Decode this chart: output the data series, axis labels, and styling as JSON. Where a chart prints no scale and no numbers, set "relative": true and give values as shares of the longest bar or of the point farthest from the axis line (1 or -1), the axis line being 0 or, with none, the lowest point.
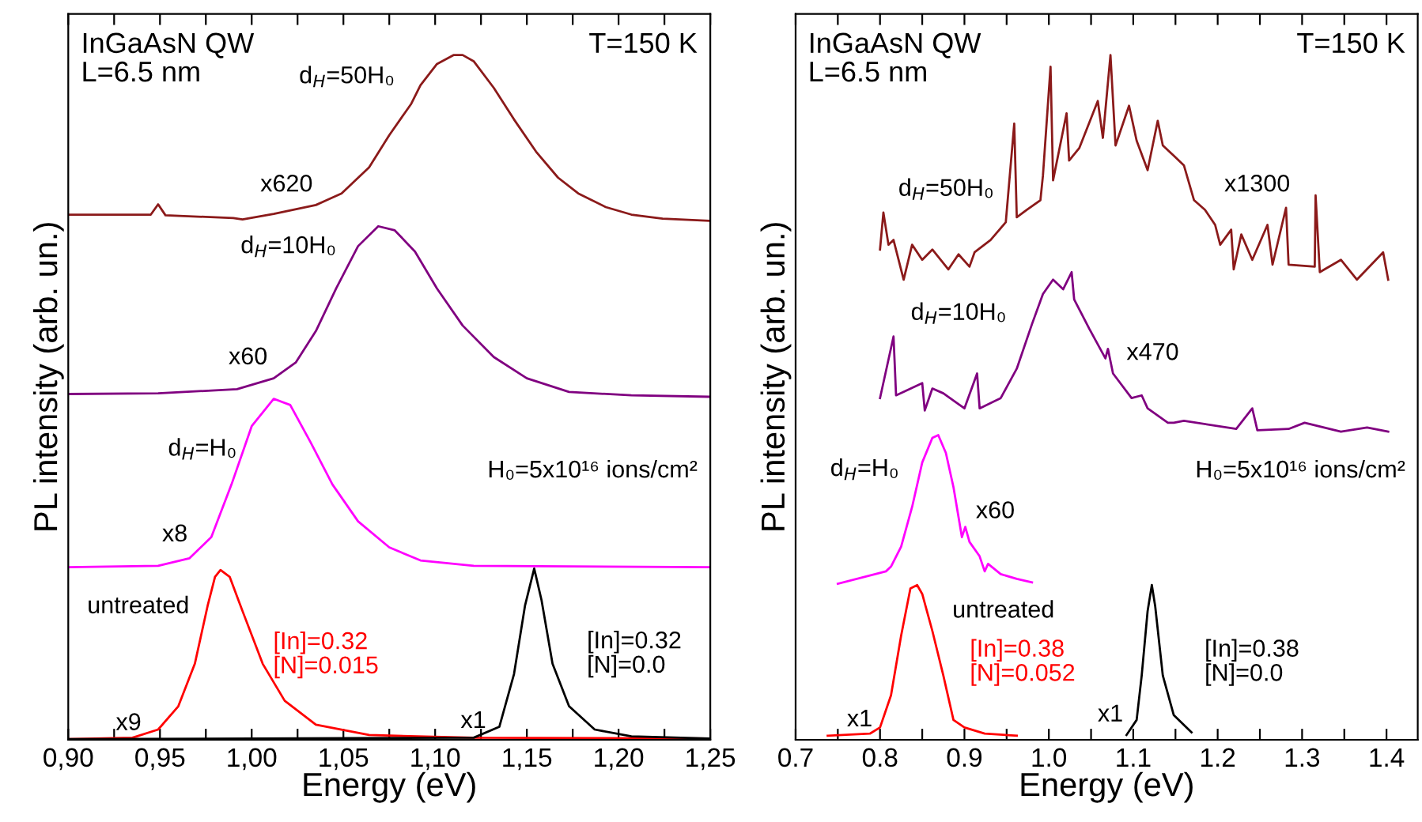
{
  "chart_data": [
    {
      "type": "line",
      "relative": true,
      "tick_labels": "x",
      "xlabel": "Energy (eV)",
      "ylabel": "PL intensity (arb. un.)",
      "xlim": [
        0.9,
        1.25
      ],
      "xticks": [
        {
          "value": 0.9,
          "label": "0,90"
        },
        {
          "value": 0.925,
          "label": null
        },
        {
          "value": 0.95,
          "label": "0,95"
        },
        {
          "value": 0.975,
          "label": null
        },
        {
          "value": 1.0,
          "label": "1,00"
        },
        {
          "value": 1.025,
          "label": null
        },
        {
          "value": 1.05,
          "label": "1,05"
        },
        {
          "value": 1.075,
          "label": null
        },
        {
          "value": 1.1,
          "label": "1,10"
        },
        {
          "value": 1.125,
          "label": null
        },
        {
          "value": 1.15,
          "label": "1,15"
        },
        {
          "value": 1.175,
          "label": null
        },
        {
          "value": 1.2,
          "label": "1,20"
        },
        {
          "value": 1.225,
          "label": null
        },
        {
          "value": 1.25,
          "label": "1,25"
        }
      ],
      "series": [
        {
          "color": "#8b1a1a",
          "x": [
            0.9,
            0.945,
            0.949,
            0.953,
            0.99,
            0.995,
            1.012,
            1.035,
            1.049,
            1.064,
            1.075,
            1.087,
            1.092,
            1.101,
            1.11,
            1.115,
            1.121,
            1.132,
            1.143,
            1.155,
            1.167,
            1.178,
            1.193,
            1.207,
            1.224,
            1.249
          ],
          "values": [
            0.767,
            0.767,
            0.782,
            0.766,
            0.762,
            0.76,
            0.768,
            0.781,
            0.798,
            0.836,
            0.883,
            0.929,
            0.956,
            0.987,
            1.0,
            1.0,
            0.991,
            0.952,
            0.906,
            0.859,
            0.821,
            0.798,
            0.778,
            0.767,
            0.761,
            0.758
          ]
        },
        {
          "color": "#800080",
          "x": [
            0.9,
            0.949,
            0.992,
            1.012,
            1.024,
            1.035,
            1.046,
            1.058,
            1.069,
            1.078,
            1.089,
            1.101,
            1.115,
            1.132,
            1.15,
            1.173,
            1.207,
            1.249
          ],
          "values": [
            0.505,
            0.506,
            0.512,
            0.528,
            0.551,
            0.597,
            0.659,
            0.721,
            0.75,
            0.744,
            0.713,
            0.659,
            0.605,
            0.559,
            0.528,
            0.508,
            0.503,
            0.501
          ]
        },
        {
          "color": "#ff00ff",
          "x": [
            0.9,
            0.949,
            0.966,
            0.978,
            0.989,
            1.0,
            1.012,
            1.021,
            1.032,
            1.044,
            1.058,
            1.075,
            1.092,
            1.121,
            1.249
          ],
          "values": [
            0.252,
            0.254,
            0.265,
            0.296,
            0.373,
            0.458,
            0.498,
            0.489,
            0.435,
            0.373,
            0.319,
            0.281,
            0.262,
            0.254,
            0.252
          ]
        },
        {
          "name": "[In]=0.32\n[N]=0.015",
          "color": "#ff0000",
          "x": [
            0.9,
            0.935,
            0.949,
            0.96,
            0.969,
            0.976,
            0.98,
            0.983,
            0.988,
            0.995,
            1.006,
            1.018,
            1.035,
            1.064,
            1.121,
            1.249
          ],
          "values": [
            0.001,
            0.003,
            0.015,
            0.049,
            0.111,
            0.196,
            0.238,
            0.248,
            0.238,
            0.188,
            0.111,
            0.057,
            0.022,
            0.007,
            0.003,
            0.002
          ]
        },
        {
          "name": "[In]=0.32\n[N]=0.0",
          "color": "#000000",
          "x": [
            0.9,
            1.121,
            1.135,
            1.143,
            1.149,
            1.154,
            1.158,
            1.164,
            1.173,
            1.187,
            1.207,
            1.249
          ],
          "values": [
            0.001,
            0.003,
            0.019,
            0.096,
            0.196,
            0.25,
            0.204,
            0.111,
            0.049,
            0.015,
            0.005,
            0.002
          ]
        }
      ],
      "annotations": [
        "InGaAsN QW\nL=6.5 nm",
        "T=150 K",
        "H₀=5x10¹⁶ ions/cm²",
        "d$_{H}$=50H₀",
        "x620",
        "d$_{H}$=10H₀",
        "x60",
        "d$_{H}$=H₀",
        "x8",
        "untreated",
        "x9",
        "x1"
      ]
    },
    {
      "type": "line",
      "relative": true,
      "tick_labels": "x",
      "xlabel": "Energy (eV)",
      "ylabel": "PL intensity (arb. un.)",
      "xlim": [
        0.7,
        1.437
      ],
      "xticks": [
        0.7,
        {
          "value": 0.75,
          "label": null
        },
        0.8,
        {
          "value": 0.85,
          "label": null
        },
        0.9,
        {
          "value": 0.95,
          "label": null
        },
        {
          "value": 1.0,
          "label": "1.0"
        },
        {
          "value": 1.05,
          "label": null
        },
        1.1,
        {
          "value": 1.15,
          "label": null
        },
        1.2,
        {
          "value": 1.25,
          "label": null
        },
        1.3,
        {
          "value": 1.35,
          "label": null
        },
        1.4
      ],
      "series": [
        {
          "color": "#8b1a1a",
          "x": [
            0.8,
            0.804,
            0.81,
            0.816,
            0.828,
            0.838,
            0.85,
            0.862,
            0.881,
            0.893,
            0.906,
            0.912,
            0.931,
            0.949,
            0.959,
            0.962,
            0.974,
            0.99,
            0.993,
            1.002,
            1.005,
            1.021,
            1.024,
            1.036,
            1.058,
            1.064,
            1.073,
            1.079,
            1.095,
            1.104,
            1.117,
            1.129,
            1.135,
            1.148,
            1.16,
            1.172,
            1.185,
            1.197,
            1.203,
            1.216,
            1.219,
            1.228,
            1.241,
            1.259,
            1.265,
            1.281,
            1.284,
            1.315,
            1.316,
            1.321,
            1.346,
            1.365,
            1.396,
            1.402
          ],
          "values": [
            0.716,
            0.77,
            0.723,
            0.73,
            0.672,
            0.723,
            0.701,
            0.716,
            0.687,
            0.709,
            0.691,
            0.712,
            0.73,
            0.756,
            0.9,
            0.763,
            0.774,
            0.788,
            0.824,
            0.983,
            0.817,
            0.915,
            0.846,
            0.864,
            0.933,
            0.879,
            1.0,
            0.868,
            0.926,
            0.875,
            0.832,
            0.904,
            0.868,
            0.853,
            0.839,
            0.788,
            0.774,
            0.752,
            0.723,
            0.745,
            0.687,
            0.738,
            0.701,
            0.752,
            0.694,
            0.777,
            0.694,
            0.691,
            0.795,
            0.683,
            0.701,
            0.672,
            0.712,
            0.672
          ]
        },
        {
          "color": "#800080",
          "x": [
            0.8,
            0.816,
            0.819,
            0.85,
            0.853,
            0.862,
            0.875,
            0.9,
            0.915,
            0.918,
            0.943,
            0.962,
            0.98,
            0.993,
            1.005,
            1.017,
            1.027,
            1.03,
            1.048,
            1.067,
            1.07,
            1.076,
            1.098,
            1.11,
            1.117,
            1.141,
            1.148,
            1.16,
            1.222,
            1.241,
            1.247,
            1.284,
            1.303,
            1.346,
            1.377,
            1.402
          ],
          "values": [
            0.499,
            0.589,
            0.503,
            0.521,
            0.481,
            0.513,
            0.506,
            0.484,
            0.535,
            0.484,
            0.499,
            0.542,
            0.607,
            0.651,
            0.672,
            0.658,
            0.683,
            0.643,
            0.6,
            0.557,
            0.571,
            0.535,
            0.499,
            0.503,
            0.484,
            0.463,
            0.463,
            0.466,
            0.454,
            0.484,
            0.452,
            0.454,
            0.463,
            0.45,
            0.456,
            0.45
          ]
        },
        {
          "color": "#ff00ff",
          "x": [
            0.75,
            0.807,
            0.813,
            0.825,
            0.838,
            0.85,
            0.862,
            0.869,
            0.878,
            0.887,
            0.897,
            0.901,
            0.906,
            0.918,
            0.924,
            0.928,
            0.943,
            0.962,
            0.98
          ],
          "values": [
            0.228,
            0.246,
            0.253,
            0.282,
            0.34,
            0.405,
            0.441,
            0.445,
            0.419,
            0.369,
            0.296,
            0.311,
            0.289,
            0.268,
            0.246,
            0.257,
            0.242,
            0.235,
            0.23
          ]
        },
        {
          "name": "[In]=0.38\n[N]=0.052",
          "color": "#ff0000",
          "x": [
            0.738,
            0.788,
            0.8,
            0.813,
            0.825,
            0.836,
            0.844,
            0.85,
            0.862,
            0.875,
            0.887,
            0.9,
            0.924,
            0.962
          ],
          "values": [
            0.006,
            0.009,
            0.018,
            0.065,
            0.152,
            0.221,
            0.226,
            0.213,
            0.159,
            0.094,
            0.029,
            0.018,
            0.009,
            0.006
          ]
        },
        {
          "name": "[In]=0.38\n[N]=0.0",
          "color": "#000000",
          "x": [
            1.092,
            1.104,
            1.11,
            1.117,
            1.122,
            1.126,
            1.135,
            1.148,
            1.169
          ],
          "values": [
            0.007,
            0.029,
            0.094,
            0.188,
            0.226,
            0.195,
            0.094,
            0.036,
            0.011
          ]
        }
      ],
      "annotations": [
        "InGaAsN QW\nL=6.5 nm",
        "T=150 K",
        "H₀=5x10¹⁶ ions/cm²",
        "d$_{H}$=50H₀",
        "x1300",
        "d$_{H}$=10H₀",
        "x470",
        "d$_{H}$=H₀",
        "x60",
        "untreated",
        "x1",
        "x1"
      ]
    }
  ]
}
